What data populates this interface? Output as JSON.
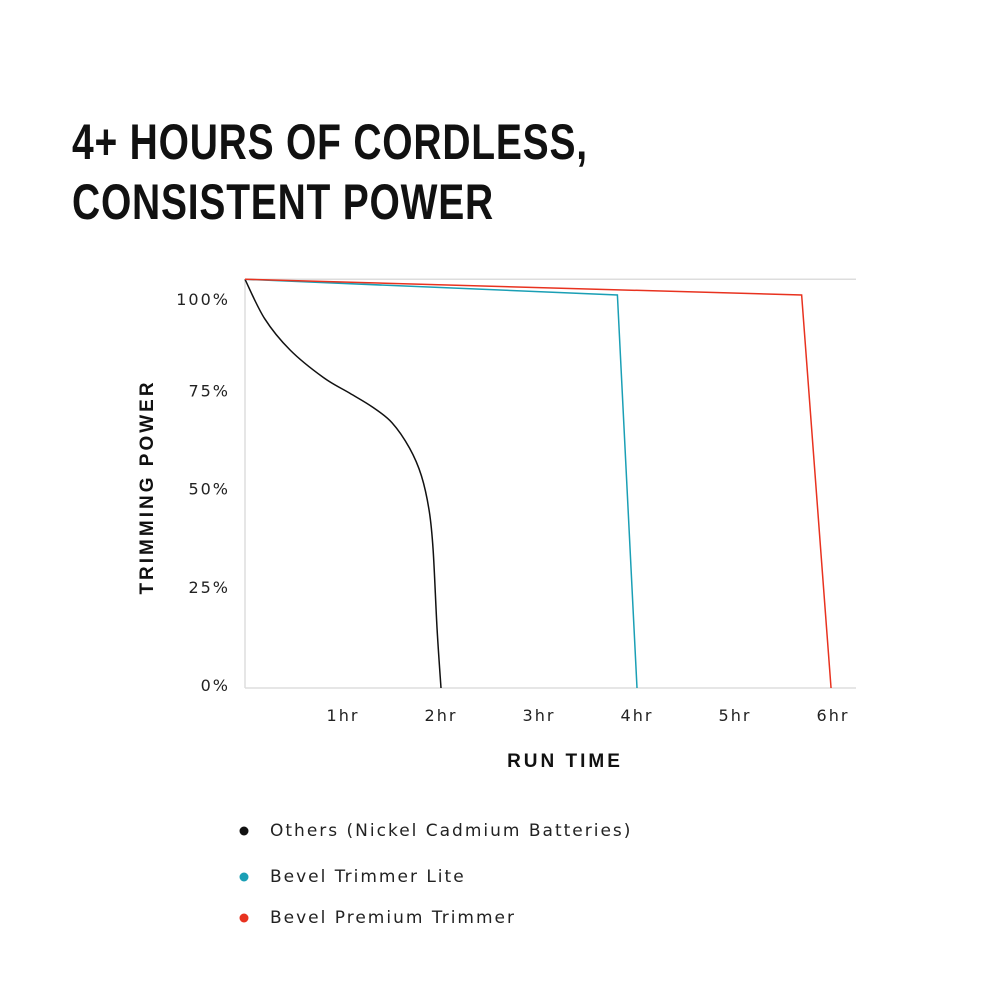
{
  "title_lines": [
    "4+ HOURS OF CORDLESS,",
    "CONSISTENT POWER"
  ],
  "chart_data": {
    "type": "line",
    "title": "4+ HOURS OF CORDLESS, CONSISTENT POWER",
    "xlabel": "RUN TIME",
    "ylabel": "TRIMMING POWER",
    "xlim": [
      0,
      6.2
    ],
    "ylim": [
      0,
      104
    ],
    "xticks": [
      {
        "v": 1,
        "label": "1hr"
      },
      {
        "v": 2,
        "label": "2hr"
      },
      {
        "v": 3,
        "label": "3hr"
      },
      {
        "v": 4,
        "label": "4hr"
      },
      {
        "v": 5,
        "label": "5hr"
      },
      {
        "v": 6,
        "label": "6hr"
      }
    ],
    "yticks": [
      {
        "v": 0,
        "label": "0%"
      },
      {
        "v": 25,
        "label": "25%"
      },
      {
        "v": 50,
        "label": "50%"
      },
      {
        "v": 75,
        "label": "75%"
      },
      {
        "v": 100,
        "label": "100%"
      }
    ],
    "grid": false,
    "legend_position": "bottom",
    "series": [
      {
        "name": "Others (Nickel Cadmium Batteries)",
        "color": "#111111",
        "curve": true,
        "points": [
          [
            0,
            104
          ],
          [
            0.2,
            94
          ],
          [
            0.46,
            86
          ],
          [
            0.8,
            79
          ],
          [
            1.07,
            75
          ],
          [
            1.3,
            71.5
          ],
          [
            1.5,
            67.5
          ],
          [
            1.68,
            61
          ],
          [
            1.8,
            54
          ],
          [
            1.88,
            45
          ],
          [
            1.92,
            35
          ],
          [
            1.96,
            15
          ],
          [
            2.0,
            0
          ]
        ]
      },
      {
        "name": "Bevel Trimmer Lite",
        "color": "#1a9fb5",
        "curve": false,
        "points": [
          [
            0,
            104
          ],
          [
            3.8,
            100
          ],
          [
            4.0,
            0
          ]
        ]
      },
      {
        "name": "Bevel Premium Trimmer",
        "color": "#e8321f",
        "curve": false,
        "points": [
          [
            0,
            104
          ],
          [
            5.68,
            100
          ],
          [
            5.98,
            0
          ]
        ]
      }
    ]
  }
}
